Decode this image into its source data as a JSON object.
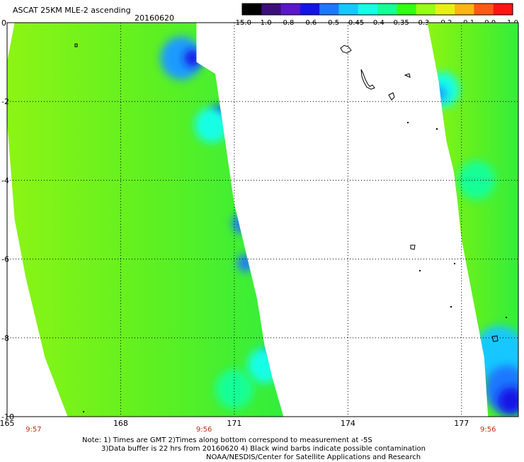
{
  "title": "ASCAT 25KM MLE-2 ascending",
  "date": "20160620",
  "colorbar": {
    "labels": [
      "-15.0",
      "-1.0",
      "-0.8",
      "-0.6",
      "-0.5",
      "-0.45",
      "-0.4",
      "-0.35",
      "-0.3",
      "-0.2",
      "-0.1",
      "0.0",
      "1.0"
    ],
    "colors": [
      "#000000",
      "#3a0f78",
      "#5a18c8",
      "#1414e6",
      "#1e78ff",
      "#14c8ff",
      "#14ffe6",
      "#14ff96",
      "#32ff14",
      "#96ff14",
      "#e6f014",
      "#ffb414",
      "#ff5a14",
      "#ff1414"
    ]
  },
  "chart_data": {
    "type": "heatmap",
    "x_ticks": [
      165,
      168,
      171,
      174,
      177
    ],
    "y_ticks": [
      0,
      -2,
      -4,
      -6,
      -8,
      -10
    ],
    "xlim": [
      165,
      178.5
    ],
    "ylim": [
      -10,
      0
    ],
    "grid": true,
    "times": [
      {
        "x": 165.7,
        "label": "9:57"
      },
      {
        "x": 170.2,
        "label": "9:56"
      },
      {
        "x": 177.7,
        "label": "9:56"
      }
    ],
    "swaths": [
      {
        "name": "west-swath",
        "polygon": [
          [
            165.2,
            0
          ],
          [
            170.0,
            0
          ],
          [
            170.0,
            -1.0
          ],
          [
            170.5,
            -1.3
          ],
          [
            171.0,
            -4.6
          ],
          [
            171.3,
            -5.8
          ],
          [
            171.6,
            -7.0
          ],
          [
            171.8,
            -8.2
          ],
          [
            172.0,
            -9.0
          ],
          [
            172.3,
            -10
          ],
          [
            166.6,
            -10
          ],
          [
            166.0,
            -8.5
          ],
          [
            165.5,
            -6.5
          ],
          [
            165.2,
            -5.0
          ],
          [
            165.0,
            -2.5
          ],
          [
            165.0,
            -1.0
          ]
        ],
        "anomalies": [
          {
            "x": 169.6,
            "y": -0.9,
            "r": 0.55,
            "color": "#1e9bff"
          },
          {
            "x": 169.9,
            "y": -0.9,
            "r": 0.22,
            "color": "#1414e6"
          },
          {
            "x": 170.6,
            "y": -2.3,
            "r": 0.2,
            "color": "#1414e6"
          },
          {
            "x": 170.4,
            "y": -2.6,
            "r": 0.45,
            "color": "#14ffe6"
          },
          {
            "x": 171.2,
            "y": -5.1,
            "r": 0.25,
            "color": "#1e78ff"
          },
          {
            "x": 171.3,
            "y": -6.1,
            "r": 0.22,
            "color": "#1e78ff"
          },
          {
            "x": 172.0,
            "y": -8.5,
            "r": 0.25,
            "color": "#1414e6"
          },
          {
            "x": 171.8,
            "y": -8.7,
            "r": 0.45,
            "color": "#14ffe6"
          },
          {
            "x": 171.0,
            "y": -9.3,
            "r": 0.5,
            "color": "#14ff96"
          }
        ]
      },
      {
        "name": "east-swath",
        "polygon": [
          [
            176.1,
            0
          ],
          [
            178.5,
            0
          ],
          [
            178.5,
            -10
          ],
          [
            177.7,
            -10
          ],
          [
            177.6,
            -8.5
          ],
          [
            177.4,
            -7.5
          ],
          [
            177.2,
            -6.5
          ],
          [
            177.0,
            -5.5
          ],
          [
            176.9,
            -4.6
          ],
          [
            176.8,
            -3.8
          ],
          [
            176.6,
            -3.0
          ],
          [
            176.5,
            -2.3
          ],
          [
            176.4,
            -1.5
          ],
          [
            176.2,
            -0.5
          ]
        ],
        "anomalies": [
          {
            "x": 176.5,
            "y": -1.7,
            "r": 0.45,
            "color": "#14ffe6"
          },
          {
            "x": 176.4,
            "y": -1.8,
            "r": 0.2,
            "color": "#1e9bff"
          },
          {
            "x": 177.4,
            "y": -4.0,
            "r": 0.5,
            "color": "#14ff96"
          },
          {
            "x": 178.0,
            "y": -8.4,
            "r": 0.7,
            "color": "#14c8ff"
          },
          {
            "x": 178.2,
            "y": -9.3,
            "r": 0.6,
            "color": "#1e78ff"
          },
          {
            "x": 178.3,
            "y": -9.6,
            "r": 0.35,
            "color": "#1414e6"
          }
        ]
      }
    ]
  },
  "notes": [
    "Note: 1) Times are GMT 2)Times along bottom correspond to measurement at -5S",
    "3)Data buffer is 22 hrs from 20160620 4) Black wind barbs indicate possible contamination",
    "NOAA/NESDIS/Center for Satellite Applications and Research"
  ]
}
